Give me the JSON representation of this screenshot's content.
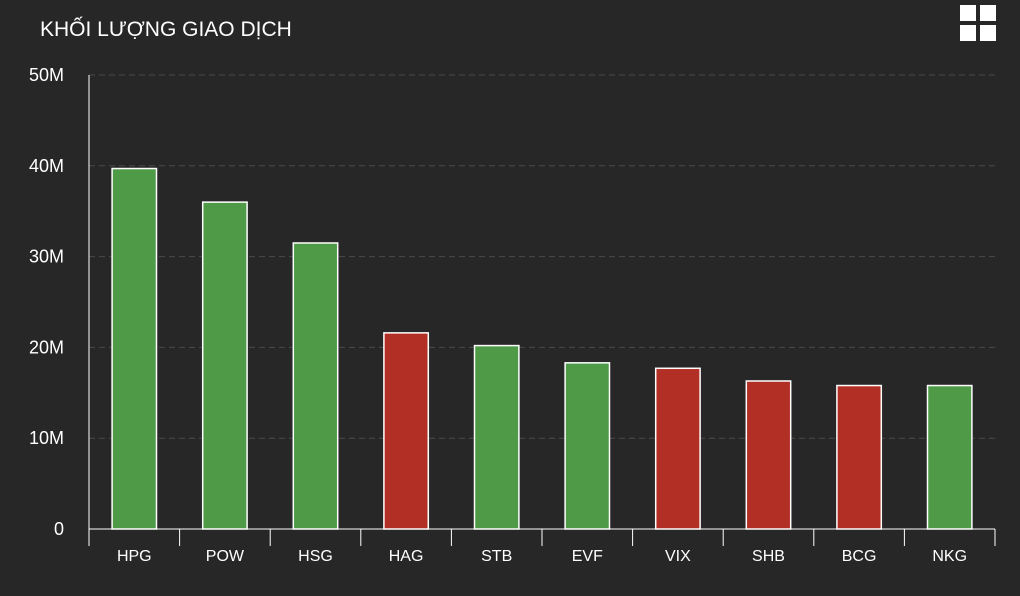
{
  "header": {
    "title": "KHỐI LƯỢNG GIAO DỊCH",
    "menu_icon": "grid-menu-icon"
  },
  "colors": {
    "background": "#272727",
    "up": "#4e9a47",
    "down": "#b22f26",
    "bar_border": "#ffffff",
    "grid": "#4a4a4a",
    "axis": "#ffffff"
  },
  "chart_data": {
    "type": "bar",
    "title": "KHỐI LƯỢNG GIAO DỊCH",
    "categories": [
      "HPG",
      "POW",
      "HSG",
      "HAG",
      "STB",
      "EVF",
      "VIX",
      "SHB",
      "BCG",
      "NKG"
    ],
    "values": [
      39700000,
      36000000,
      31500000,
      21600000,
      20200000,
      18300000,
      17700000,
      16300000,
      15800000,
      15800000
    ],
    "direction": [
      "up",
      "up",
      "up",
      "down",
      "up",
      "up",
      "down",
      "down",
      "down",
      "up"
    ],
    "ylim": [
      0,
      50000000
    ],
    "yticks": [
      0,
      10000000,
      20000000,
      30000000,
      40000000,
      50000000
    ],
    "ytick_labels": [
      "0",
      "10M",
      "20M",
      "30M",
      "40M",
      "50M"
    ],
    "grid": true,
    "legend": "none"
  }
}
